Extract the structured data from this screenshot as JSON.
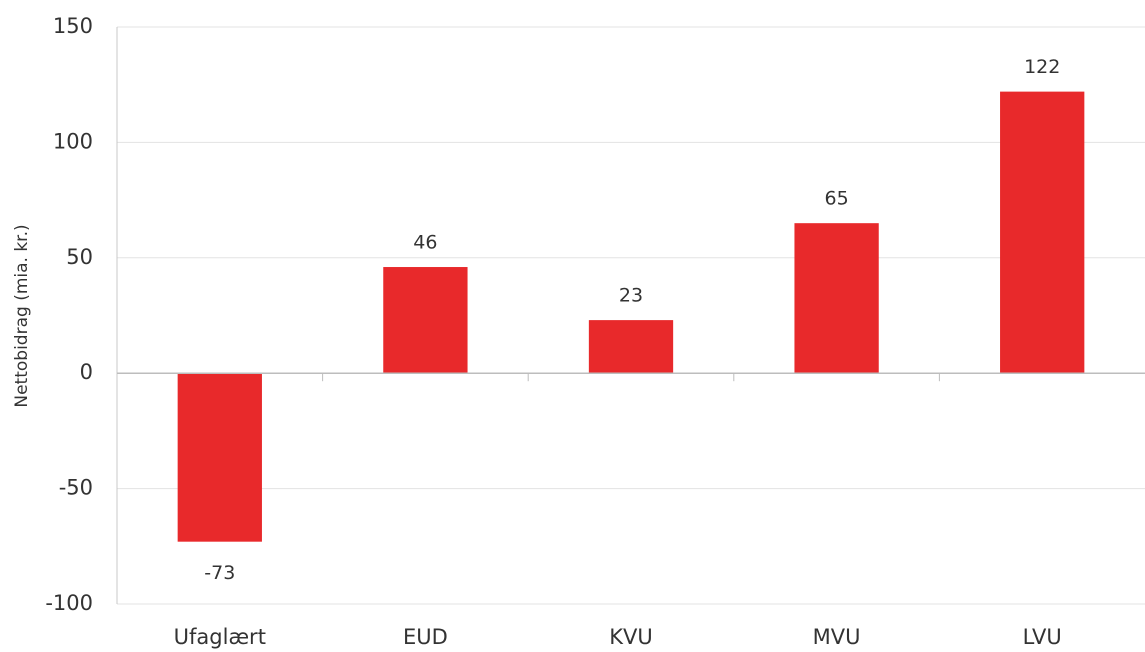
{
  "chart_data": {
    "type": "bar",
    "y_label": "Nettobidrag (mia. kr.)",
    "categories": [
      "Ufaglært",
      "EUD",
      "KVU",
      "MVU",
      "LVU"
    ],
    "values": [
      -73,
      46,
      23,
      65,
      122
    ],
    "color": "#e8292b",
    "ylim": [
      -100,
      150
    ],
    "yticks": [
      -100,
      -50,
      0,
      50,
      100,
      150
    ],
    "grid": true
  }
}
